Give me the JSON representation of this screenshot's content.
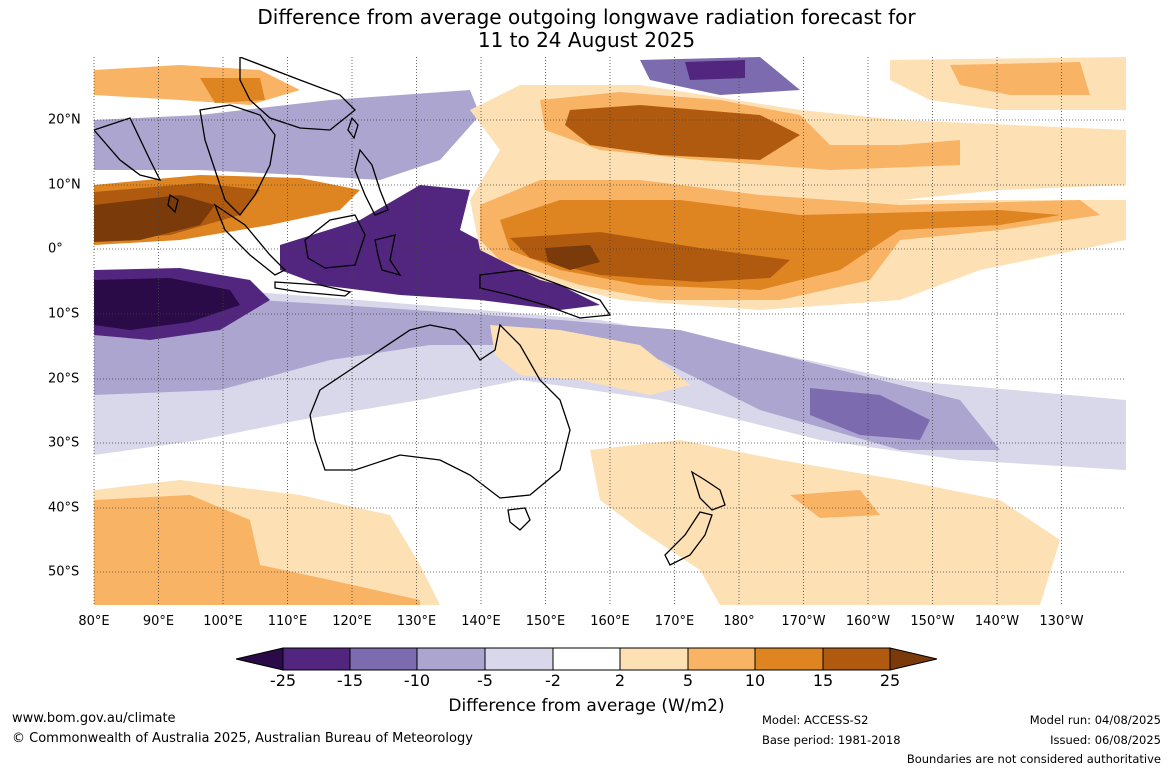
{
  "title": {
    "line1": "Difference from average outgoing longwave radiation forecast for",
    "line2": "11 to 24 August 2025"
  },
  "map": {
    "lon_labels": [
      "80°E",
      "90°E",
      "100°E",
      "110°E",
      "120°E",
      "130°E",
      "140°E",
      "150°E",
      "160°E",
      "170°E",
      "180°",
      "170°W",
      "160°W",
      "150°W",
      "140°W",
      "130°W"
    ],
    "lat_labels": [
      "20°N",
      "10°N",
      "0°",
      "10°S",
      "20°S",
      "30°S",
      "40°S",
      "50°S"
    ],
    "colors": {
      "neg_extreme": "#2a0a47",
      "neg25": "#52267e",
      "neg15": "#7d6baf",
      "neg10": "#aba5cf",
      "neg5": "#d8d8ea",
      "neutral": "#ffffff",
      "pos2": "#fde0b4",
      "pos5": "#f9b364",
      "pos10": "#de8421",
      "pos15": "#b05a0f",
      "pos_extreme": "#7a3a0a"
    }
  },
  "colorbar": {
    "tick_labels": [
      "-25",
      "-15",
      "-10",
      "-5",
      "-2",
      "2",
      "5",
      "10",
      "15",
      "25"
    ],
    "label": "Difference from average (W/m2)"
  },
  "footer": {
    "website": "www.bom.gov.au/climate",
    "copyright": "© Commonwealth of Australia 2025, Australian Bureau of Meteorology",
    "model": "Model: ACCESS-S2",
    "base_period": "Base period: 1981-2018",
    "model_run": "Model run: 04/08/2025",
    "issued": "Issued: 06/08/2025",
    "disclaimer": "Boundaries are not considered authoritative"
  }
}
